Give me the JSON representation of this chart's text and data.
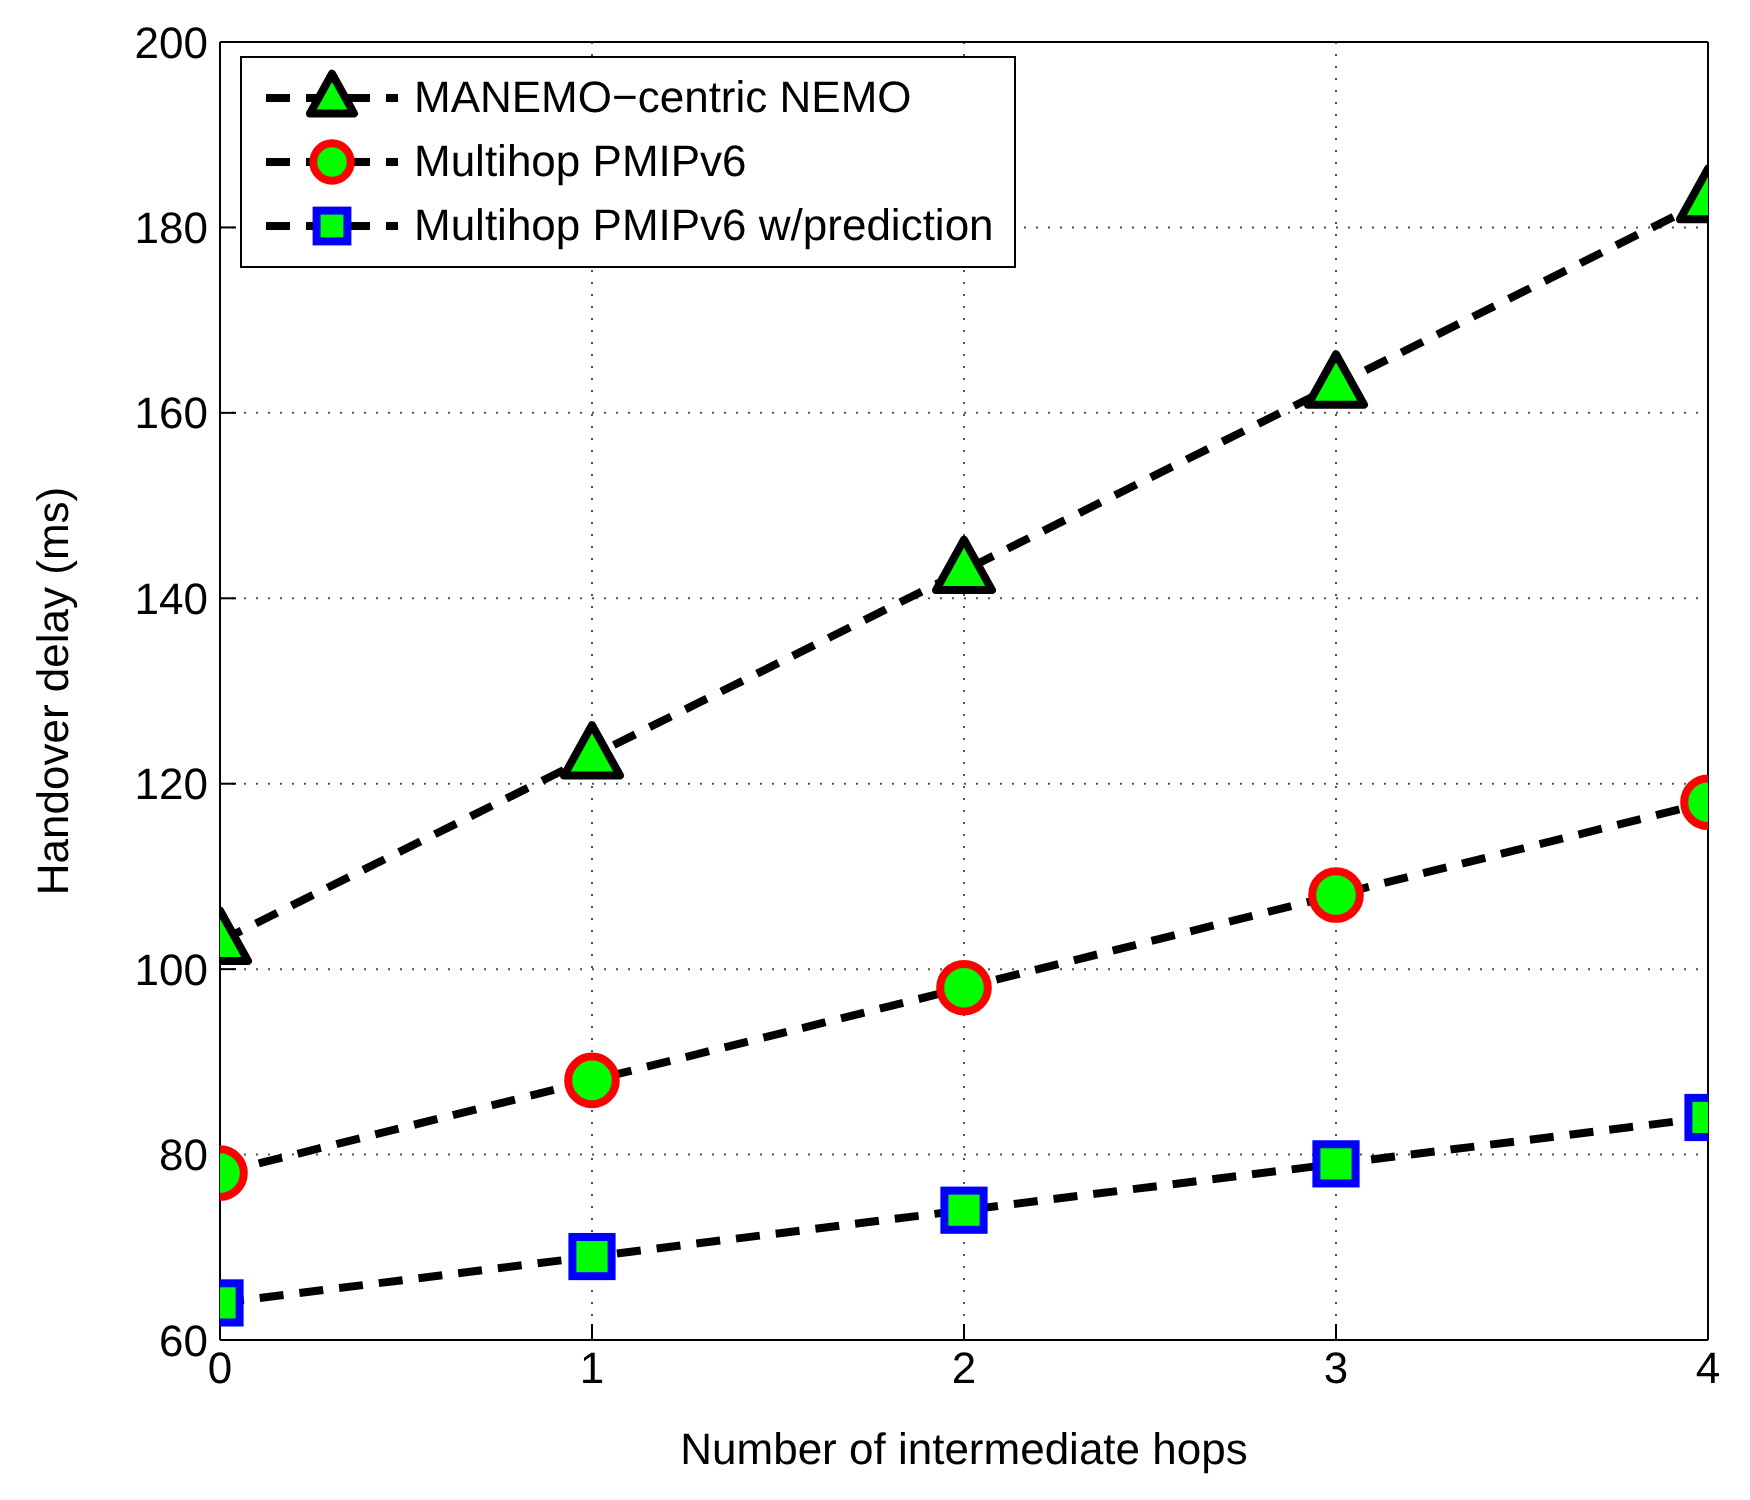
{
  "chart_data": {
    "type": "line",
    "xlabel": "Number of intermediate hops",
    "ylabel": "Handover delay (ms)",
    "x": [
      0,
      1,
      2,
      3,
      4
    ],
    "xlim": [
      0,
      4
    ],
    "xticks": [
      0,
      1,
      2,
      3,
      4
    ],
    "ylim": [
      60,
      200
    ],
    "yticks": [
      60,
      80,
      100,
      120,
      140,
      160,
      180,
      200
    ],
    "grid": true,
    "legend": "top left",
    "line_style": "dashed",
    "series": [
      {
        "name": "MANEMO−centric NEMO",
        "color": "#000000",
        "marker": "triangle",
        "values": [
          103,
          123,
          143,
          163,
          183
        ]
      },
      {
        "name": "Multihop PMIPv6",
        "color": "#ff0000",
        "marker": "circle",
        "values": [
          78,
          88,
          98,
          108,
          118
        ]
      },
      {
        "name": "Multihop PMIPv6 w/prediction",
        "color": "#0000ff",
        "marker": "square",
        "values": [
          64,
          69,
          74,
          79,
          84
        ]
      }
    ]
  }
}
